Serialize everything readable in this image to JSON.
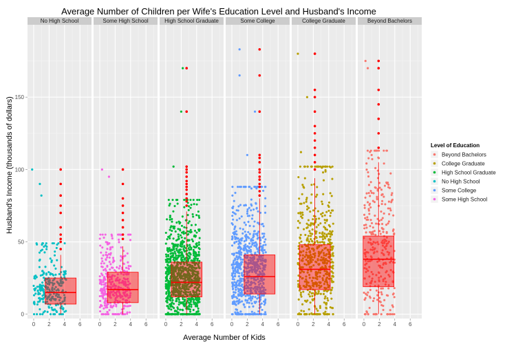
{
  "chart_data": {
    "type": "scatter",
    "title": "Average Number of Children per Wife's Education Level and Husband's Income",
    "xlabel": "Average Number of Kids",
    "ylabel": "Husband's Income (thousands of dollars)",
    "xlim": [
      -0.8,
      7.5
    ],
    "ylim": [
      -3,
      200
    ],
    "x_ticks": [
      0,
      2,
      4,
      6
    ],
    "y_ticks": [
      0,
      50,
      100,
      150
    ],
    "grid": true,
    "legend": {
      "title": "Level of Education",
      "placement": "right"
    },
    "colors": {
      "Beyond Bachelors": "#f8766d",
      "College Graduate": "#b79f00",
      "High School Graduate": "#00ba38",
      "No High School": "#00bfc4",
      "Some College": "#619cff",
      "Some High School": "#f564e3",
      "boxplot": "#ff0000"
    },
    "legend_order": [
      "Beyond Bachelors",
      "College Graduate",
      "High School Graduate",
      "No High School",
      "Some College",
      "Some High School"
    ],
    "panels": [
      {
        "name": "No High School",
        "color_key": "No High School",
        "n": 260,
        "jitter_x": [
          0,
          4.2
        ],
        "median_income": 15,
        "box": {
          "x": 3.5,
          "q1": 7,
          "median": 15,
          "q3": 25,
          "whisker_low": 0,
          "whisker_high": 41
        },
        "outliers": [
          [
            3.5,
            45
          ],
          [
            3.5,
            50
          ],
          [
            3.5,
            52
          ],
          [
            3.5,
            55
          ],
          [
            3.5,
            60
          ],
          [
            3.5,
            70
          ],
          [
            3.5,
            75
          ],
          [
            3.5,
            82
          ],
          [
            3.5,
            90
          ],
          [
            3.5,
            100
          ]
        ],
        "high_points": [
          [
            -0.2,
            100
          ],
          [
            0.8,
            90
          ],
          [
            1.0,
            82
          ]
        ]
      },
      {
        "name": "Some High School",
        "color_key": "Some High School",
        "n": 360,
        "jitter_x": [
          0,
          4.0
        ],
        "median_income": 17,
        "box": {
          "x": 3.0,
          "q1": 8,
          "median": 17,
          "q3": 29,
          "whisker_low": 0,
          "whisker_high": 47
        },
        "outliers": [
          [
            3.0,
            52
          ],
          [
            3.0,
            55
          ],
          [
            3.0,
            60
          ],
          [
            3.0,
            65
          ],
          [
            3.0,
            70
          ],
          [
            3.0,
            75
          ],
          [
            3.0,
            80
          ],
          [
            3.0,
            90
          ],
          [
            3.0,
            100
          ]
        ],
        "high_points": [
          [
            0.3,
            100
          ],
          [
            1.2,
            95
          ]
        ]
      },
      {
        "name": "High School Graduate",
        "color_key": "High School Graduate",
        "n": 1000,
        "jitter_x": [
          0,
          4.4
        ],
        "median_income": 22,
        "box": {
          "x": 2.7,
          "q1": 12,
          "median": 22,
          "q3": 36,
          "whisker_low": 0,
          "whisker_high": 71
        },
        "outliers": [
          [
            2.7,
            75
          ],
          [
            2.7,
            78
          ],
          [
            2.7,
            80
          ],
          [
            2.7,
            83
          ],
          [
            2.7,
            86
          ],
          [
            2.7,
            88
          ],
          [
            2.7,
            90
          ],
          [
            2.7,
            92
          ],
          [
            2.7,
            95
          ],
          [
            2.7,
            98
          ],
          [
            2.7,
            100
          ],
          [
            2.7,
            102
          ],
          [
            2.7,
            140
          ],
          [
            2.7,
            170
          ]
        ],
        "high_points": [
          [
            2.2,
            170
          ],
          [
            2.0,
            140
          ],
          [
            1.0,
            102
          ]
        ]
      },
      {
        "name": "Some College",
        "color_key": "Some College",
        "n": 750,
        "jitter_x": [
          0,
          4.4
        ],
        "median_income": 26,
        "box": {
          "x": 3.6,
          "q1": 14,
          "median": 26,
          "q3": 41,
          "whisker_low": 0,
          "whisker_high": 80
        },
        "outliers": [
          [
            3.6,
            82
          ],
          [
            3.6,
            85
          ],
          [
            3.6,
            88
          ],
          [
            3.6,
            90
          ],
          [
            3.6,
            93
          ],
          [
            3.6,
            95
          ],
          [
            3.6,
            98
          ],
          [
            3.6,
            100
          ],
          [
            3.6,
            105
          ],
          [
            3.6,
            108
          ],
          [
            3.6,
            110
          ],
          [
            3.6,
            140
          ],
          [
            3.6,
            165
          ],
          [
            3.6,
            183
          ]
        ],
        "high_points": [
          [
            1.0,
            183
          ],
          [
            1.0,
            165
          ],
          [
            3.0,
            140
          ],
          [
            2.0,
            110
          ]
        ]
      },
      {
        "name": "College Graduate",
        "color_key": "College Graduate",
        "n": 560,
        "jitter_x": [
          0,
          4.6
        ],
        "median_income": 31,
        "box": {
          "x": 2.2,
          "q1": 17,
          "median": 31,
          "q3": 48,
          "whisker_low": 0,
          "whisker_high": 94
        },
        "outliers": [
          [
            2.2,
            100
          ],
          [
            2.2,
            105
          ],
          [
            2.2,
            110
          ],
          [
            2.2,
            115
          ],
          [
            2.2,
            120
          ],
          [
            2.2,
            125
          ],
          [
            2.2,
            130
          ],
          [
            2.2,
            140
          ],
          [
            2.2,
            150
          ],
          [
            2.2,
            155
          ],
          [
            2.2,
            180
          ]
        ],
        "high_points": [
          [
            0.0,
            180
          ],
          [
            1.2,
            150
          ],
          [
            0.4,
            112
          ]
        ]
      },
      {
        "name": "Beyond Bachelors",
        "color_key": "Beyond Bachelors",
        "n": 320,
        "jitter_x": [
          0,
          4.0
        ],
        "median_income": 38,
        "box": {
          "x": 1.9,
          "q1": 19,
          "median": 38,
          "q3": 54,
          "whisker_low": 0,
          "whisker_high": 105
        },
        "outliers": [
          [
            1.9,
            115
          ],
          [
            1.9,
            125
          ],
          [
            1.9,
            135
          ],
          [
            1.9,
            145
          ],
          [
            1.9,
            155
          ],
          [
            1.9,
            170
          ],
          [
            1.9,
            175
          ]
        ],
        "high_points": [
          [
            0.2,
            175
          ],
          [
            0.5,
            170
          ],
          [
            1.0,
            110
          ]
        ]
      }
    ]
  }
}
